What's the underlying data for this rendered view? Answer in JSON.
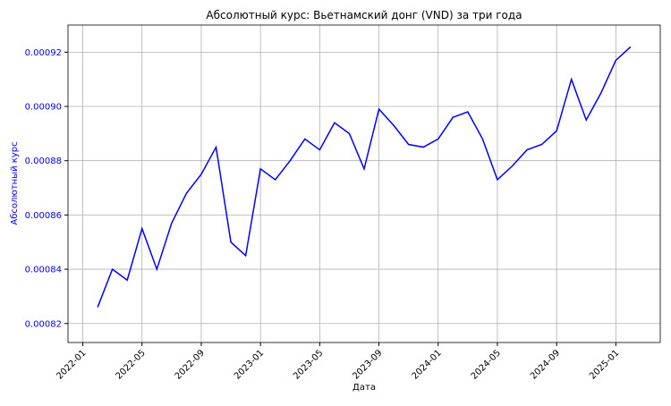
{
  "chart_data": {
    "type": "line",
    "title": "Абсолютный курс: Вьетнамский донг (VND) за три года",
    "xlabel": "Дата",
    "ylabel": "Абсолютный курс",
    "x": [
      "2022-02",
      "2022-03",
      "2022-04",
      "2022-05",
      "2022-06",
      "2022-07",
      "2022-08",
      "2022-09",
      "2022-10",
      "2022-11",
      "2022-12",
      "2023-01",
      "2023-02",
      "2023-03",
      "2023-04",
      "2023-05",
      "2023-06",
      "2023-07",
      "2023-08",
      "2023-09",
      "2023-10",
      "2023-11",
      "2023-12",
      "2024-01",
      "2024-02",
      "2024-03",
      "2024-04",
      "2024-05",
      "2024-06",
      "2024-07",
      "2024-08",
      "2024-09",
      "2024-10",
      "2024-11",
      "2024-12",
      "2025-01",
      "2025-02"
    ],
    "series": [
      {
        "name": "VND",
        "color": "#0000ff",
        "values": [
          0.000826,
          0.00084,
          0.000836,
          0.000855,
          0.00084,
          0.000857,
          0.000868,
          0.000875,
          0.000885,
          0.00085,
          0.000845,
          0.000877,
          0.000873,
          0.00088,
          0.000888,
          0.000884,
          0.000894,
          0.00089,
          0.000877,
          0.000899,
          0.000893,
          0.000886,
          0.000885,
          0.000888,
          0.000896,
          0.000898,
          0.000888,
          0.000873,
          0.000878,
          0.000884,
          0.000886,
          0.000891,
          0.00091,
          0.000895,
          0.000905,
          0.000917,
          0.000922
        ]
      }
    ],
    "xlim": [
      "2021-12",
      "2025-04"
    ],
    "xticks": [
      "2022-01",
      "2022-05",
      "2022-09",
      "2023-01",
      "2023-05",
      "2023-09",
      "2024-01",
      "2024-05",
      "2024-09",
      "2025-01"
    ],
    "ylim": [
      0.000813,
      0.00093
    ],
    "yticks": [
      0.00082,
      0.00084,
      0.00086,
      0.00088,
      {
        "value": 0.0009,
        "label": "0.00090"
      },
      0.00092
    ],
    "grid": true,
    "tick_color": "#0000ff"
  }
}
